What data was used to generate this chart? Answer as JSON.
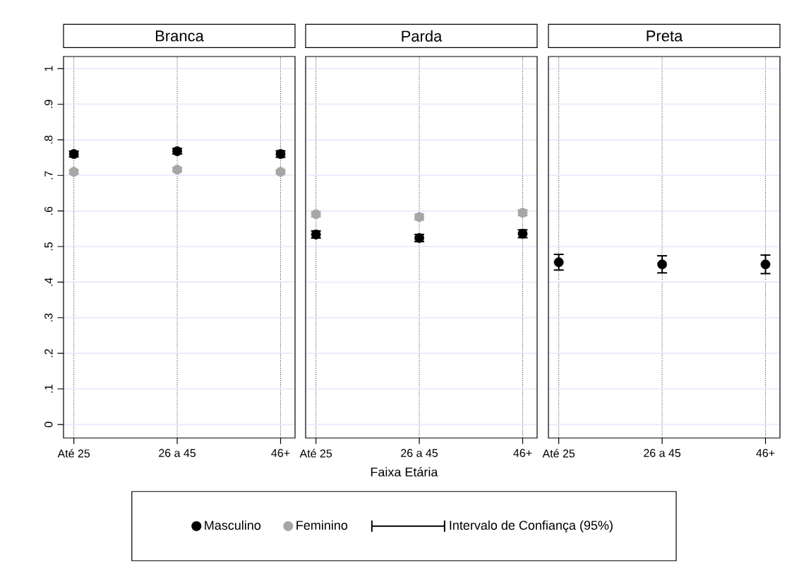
{
  "chart_data": [
    {
      "type": "scatter",
      "title": "Branca",
      "categories": [
        "Até 25",
        "26 a 45",
        "46+"
      ],
      "marker": "circle",
      "grid": true,
      "ylim": [
        -0.038,
        1.034
      ],
      "yticks": [
        0,
        {
          "value": 0.1,
          "label": ".1"
        },
        {
          "value": 0.2,
          "label": ".2"
        },
        {
          "value": 0.3,
          "label": ".3"
        },
        {
          "value": 0.4,
          "label": ".4"
        },
        {
          "value": 0.5,
          "label": ".5"
        },
        {
          "value": 0.6,
          "label": ".6"
        },
        {
          "value": 0.7,
          "label": ".7"
        },
        {
          "value": 0.8,
          "label": ".8"
        },
        {
          "value": 0.9,
          "label": ".9"
        },
        1
      ],
      "series": [
        {
          "color": "#000000",
          "values": [
            0.76,
            0.768,
            0.76
          ],
          "errors": [
            0.008,
            0.008,
            0.009
          ]
        },
        {
          "color": "#a6a6a6",
          "values": [
            0.71,
            0.716,
            0.71
          ],
          "errors": [
            0.006,
            0.006,
            0.006
          ]
        }
      ]
    },
    {
      "type": "scatter",
      "title": "Parda",
      "categories": [
        "Até 25",
        "26 a 45",
        "46+"
      ],
      "marker": "circle",
      "grid": true,
      "tick_labels": "x",
      "xlabel": "Faixa Etária",
      "legend": "bottom",
      "annotations": [
        "Intervalo de Confiança (95%)"
      ],
      "ylim": [
        -0.038,
        1.034
      ],
      "yticks": [
        0,
        0.1,
        0.2,
        0.3,
        0.4,
        0.5,
        0.6,
        0.7,
        0.8,
        0.9,
        1
      ],
      "series": [
        {
          "name": "Masculino",
          "color": "#000000",
          "values": [
            0.534,
            0.524,
            0.536
          ],
          "errors": [
            0.01,
            0.01,
            0.011
          ]
        },
        {
          "name": "Feminino",
          "color": "#a6a6a6",
          "values": [
            0.591,
            0.583,
            0.595
          ],
          "errors": [
            0.007,
            0.008,
            0.008
          ]
        }
      ]
    },
    {
      "type": "scatter",
      "title": "Preta",
      "categories": [
        "Até 25",
        "26 a 45",
        "46+"
      ],
      "marker": "circle",
      "grid": true,
      "tick_labels": "x",
      "ylim": [
        -0.038,
        1.034
      ],
      "yticks": [
        0,
        0.1,
        0.2,
        0.3,
        0.4,
        0.5,
        0.6,
        0.7,
        0.8,
        0.9,
        1
      ],
      "series": [
        {
          "color": "#000000",
          "values": [
            0.456,
            0.45,
            0.45
          ],
          "errors": [
            0.022,
            0.024,
            0.026
          ]
        },
        {
          "color": "#a6a6a6",
          "values": [
            null,
            null,
            null
          ],
          "errors": [
            null,
            null,
            null
          ]
        }
      ]
    }
  ]
}
